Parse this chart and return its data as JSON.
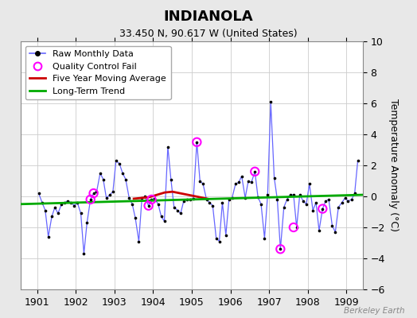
{
  "title": "INDIANOLA",
  "subtitle": "33.450 N, 90.617 W (United States)",
  "ylabel": "Temperature Anomaly (°C)",
  "watermark": "Berkeley Earth",
  "xlim": [
    1900.58,
    1909.42
  ],
  "ylim": [
    -6,
    10
  ],
  "yticks": [
    -6,
    -4,
    -2,
    0,
    2,
    4,
    6,
    8,
    10
  ],
  "xticks": [
    1901,
    1902,
    1903,
    1904,
    1905,
    1906,
    1907,
    1908,
    1909
  ],
  "background_color": "#e8e8e8",
  "raw_data_x": [
    1901.04,
    1901.13,
    1901.21,
    1901.29,
    1901.38,
    1901.46,
    1901.54,
    1901.63,
    1901.71,
    1901.79,
    1901.88,
    1901.96,
    1902.04,
    1902.13,
    1902.21,
    1902.29,
    1902.38,
    1902.46,
    1902.54,
    1902.63,
    1902.71,
    1902.79,
    1902.88,
    1902.96,
    1903.04,
    1903.13,
    1903.21,
    1903.29,
    1903.38,
    1903.46,
    1903.54,
    1903.63,
    1903.71,
    1903.79,
    1903.88,
    1903.96,
    1904.04,
    1904.13,
    1904.21,
    1904.29,
    1904.38,
    1904.46,
    1904.54,
    1904.63,
    1904.71,
    1904.79,
    1904.88,
    1904.96,
    1905.04,
    1905.13,
    1905.21,
    1905.29,
    1905.38,
    1905.46,
    1905.54,
    1905.63,
    1905.71,
    1905.79,
    1905.88,
    1905.96,
    1906.04,
    1906.13,
    1906.21,
    1906.29,
    1906.38,
    1906.46,
    1906.54,
    1906.63,
    1906.71,
    1906.79,
    1906.88,
    1906.96,
    1907.04,
    1907.13,
    1907.21,
    1907.29,
    1907.38,
    1907.46,
    1907.54,
    1907.63,
    1907.71,
    1907.79,
    1907.88,
    1907.96,
    1908.04,
    1908.13,
    1908.21,
    1908.29,
    1908.38,
    1908.46,
    1908.54,
    1908.63,
    1908.71,
    1908.79,
    1908.88,
    1908.96,
    1909.04,
    1909.13,
    1909.21,
    1909.29
  ],
  "raw_data_y": [
    0.2,
    -0.4,
    -0.9,
    -2.6,
    -1.3,
    -0.7,
    -1.1,
    -0.5,
    -0.4,
    -0.3,
    -0.4,
    -0.6,
    -0.4,
    -1.1,
    -3.7,
    -1.7,
    -0.2,
    0.2,
    0.3,
    1.5,
    1.1,
    -0.1,
    0.1,
    0.3,
    2.3,
    2.1,
    1.5,
    1.1,
    -0.1,
    -0.5,
    -1.4,
    -2.9,
    -0.1,
    0.0,
    -0.6,
    -0.2,
    -0.15,
    -0.5,
    -1.3,
    -1.6,
    3.2,
    1.1,
    -0.7,
    -0.9,
    -1.1,
    -0.3,
    -0.2,
    -0.2,
    -0.15,
    3.5,
    1.0,
    0.8,
    -0.2,
    -0.4,
    -0.6,
    -2.7,
    -2.9,
    -0.4,
    -2.5,
    -0.2,
    -0.1,
    0.8,
    0.9,
    1.3,
    -0.1,
    1.0,
    0.9,
    1.6,
    -0.05,
    -0.5,
    -2.7,
    0.1,
    6.1,
    1.2,
    -0.2,
    -3.4,
    -0.7,
    -0.2,
    0.1,
    0.1,
    -2.0,
    0.1,
    -0.3,
    -0.5,
    0.8,
    -0.9,
    -0.4,
    -2.2,
    -0.8,
    -0.3,
    -0.2,
    -1.9,
    -2.3,
    -0.7,
    -0.4,
    -0.1,
    -0.3,
    -0.2,
    0.2,
    2.3
  ],
  "qc_fail_x": [
    1902.38,
    1902.46,
    1903.88,
    1903.96,
    1905.13,
    1906.63,
    1907.29,
    1907.63,
    1908.38
  ],
  "qc_fail_y": [
    -0.2,
    0.2,
    -0.6,
    -0.2,
    3.5,
    1.6,
    -3.4,
    -2.0,
    -0.8
  ],
  "moving_avg_x": [
    1903.5,
    1903.7,
    1903.9,
    1904.1,
    1904.3,
    1904.5,
    1904.7,
    1904.9,
    1905.1,
    1905.2,
    1905.3,
    1905.4
  ],
  "moving_avg_y": [
    -0.15,
    -0.1,
    -0.05,
    0.1,
    0.25,
    0.3,
    0.2,
    0.1,
    0.0,
    -0.05,
    -0.1,
    -0.15
  ],
  "trend_x": [
    1900.58,
    1909.42
  ],
  "trend_y": [
    -0.5,
    0.1
  ],
  "line_color": "#6666ff",
  "dot_color": "#000000",
  "qc_color": "#ff00ff",
  "moving_avg_color": "#cc0000",
  "trend_color": "#00aa00",
  "title_fontsize": 13,
  "subtitle_fontsize": 9,
  "axis_fontsize": 9,
  "legend_fontsize": 8
}
